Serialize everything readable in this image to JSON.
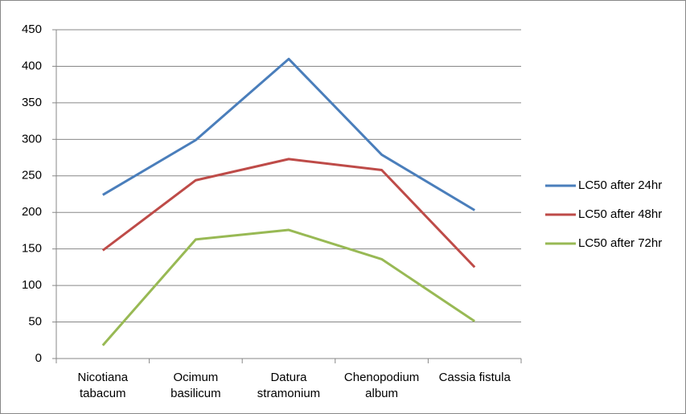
{
  "chart_data": {
    "type": "line",
    "categories": [
      "Nicotiana tabacum",
      "Ocimum basilicum",
      "Datura stramonium",
      "Chenopodium album",
      "Cassia fistula"
    ],
    "series": [
      {
        "name": "LC50 after 24hr",
        "color": "#4a7ebb",
        "values": [
          224,
          299,
          410,
          279,
          203
        ]
      },
      {
        "name": "LC50 after 48hr",
        "color": "#be4b48",
        "values": [
          148,
          244,
          273,
          258,
          125
        ]
      },
      {
        "name": "LC50 after 72hr",
        "color": "#98b954",
        "values": [
          18,
          163,
          176,
          136,
          51
        ]
      }
    ],
    "ylim": [
      0,
      450
    ],
    "yticks": [
      0,
      50,
      100,
      150,
      200,
      250,
      300,
      350,
      400,
      450
    ],
    "grid": true,
    "legend": "right"
  }
}
